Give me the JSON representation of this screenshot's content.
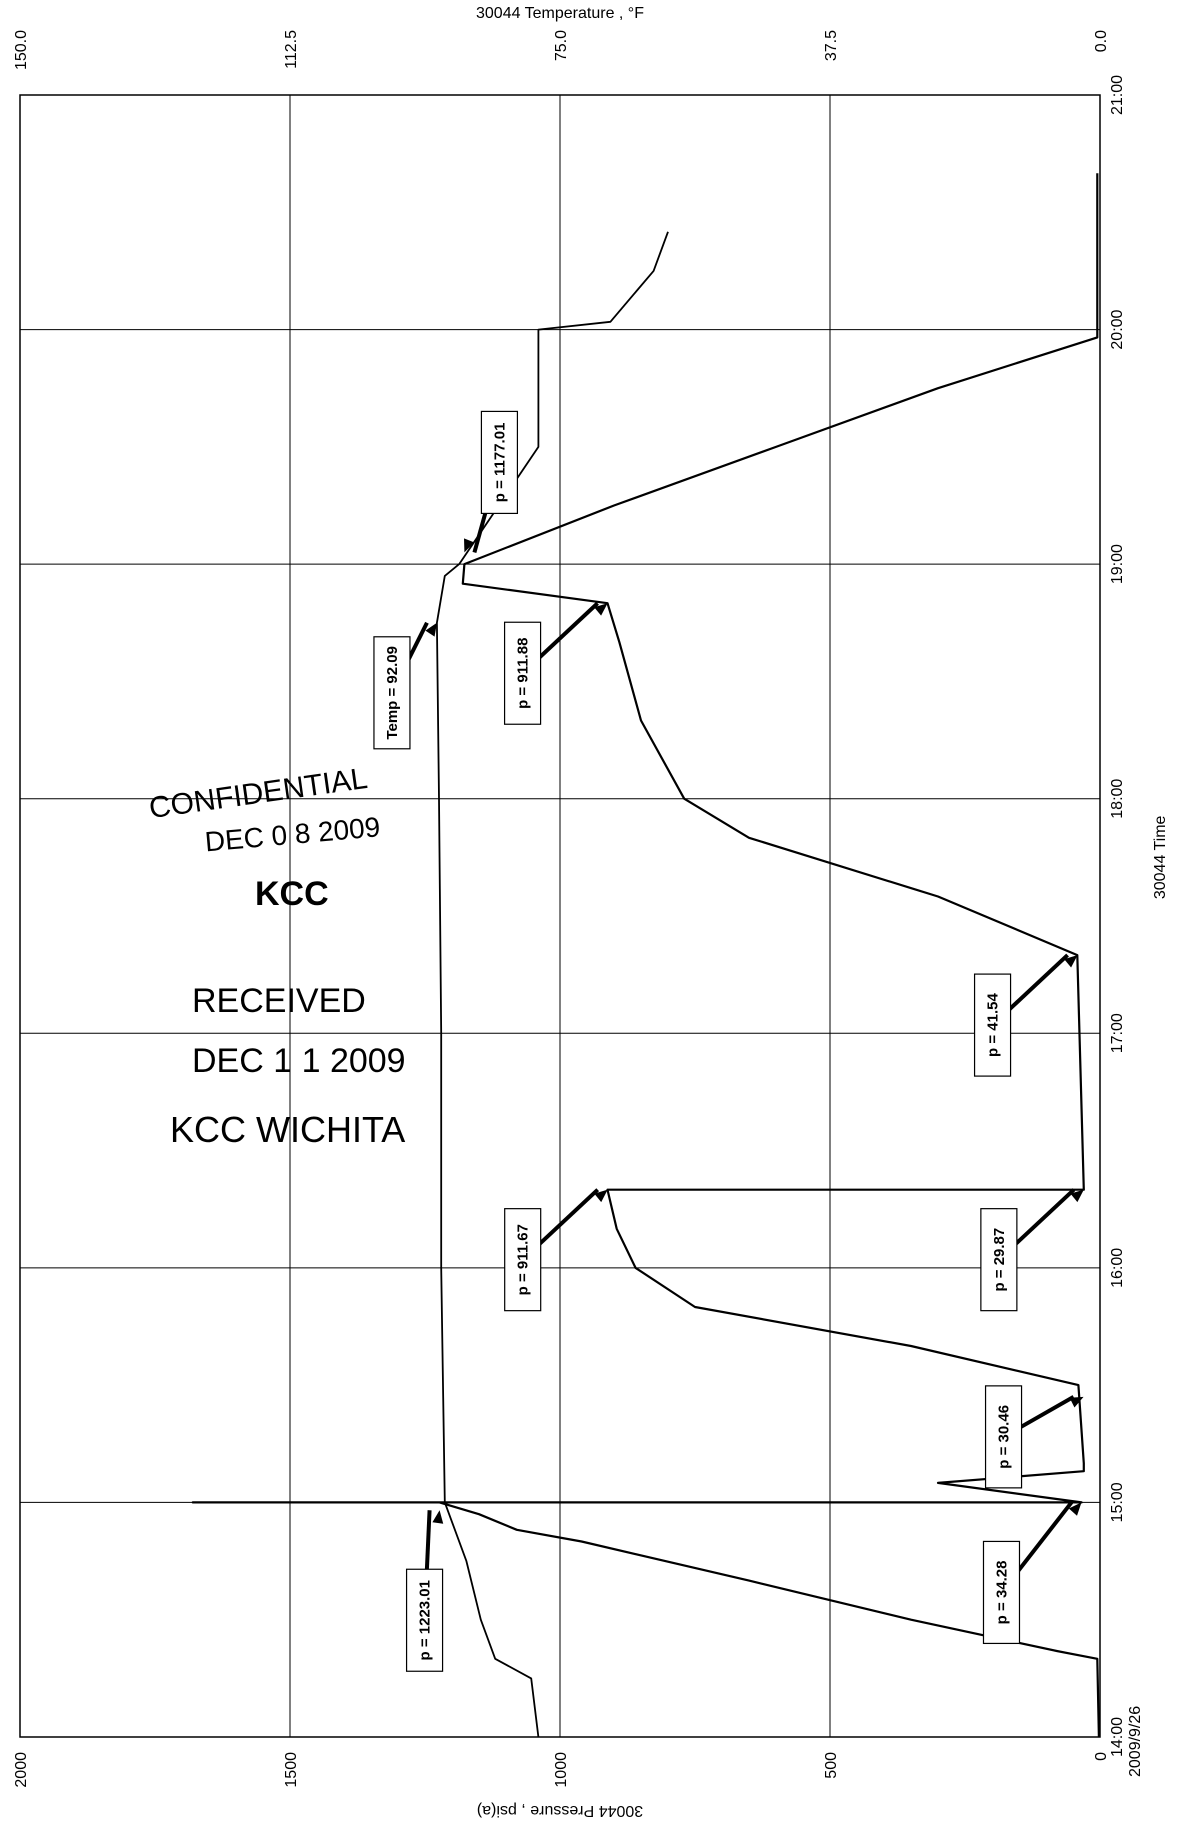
{
  "chart_data": {
    "type": "line",
    "orientation": "rotated-90",
    "x_axis": {
      "label": "30044 Time",
      "ticks": [
        "14:00",
        "15:00",
        "16:00",
        "17:00",
        "18:00",
        "19:00",
        "20:00",
        "21:00"
      ],
      "date_label": "2009/9/26",
      "range": [
        "14:00",
        "21:00"
      ]
    },
    "y_axis_left": {
      "label": "30044 Pressure , psi(a)",
      "ticks": [
        "0",
        "500",
        "1000",
        "1500",
        "2000"
      ],
      "range": [
        0,
        2000
      ]
    },
    "y_axis_right": {
      "label": "30044 Temperature , °F",
      "ticks": [
        "0.0",
        "37.5",
        "75.0",
        "112.5",
        "150.0"
      ],
      "range": [
        0,
        150
      ]
    },
    "grid": true,
    "series": [
      {
        "name": "",
        "unit": "psi(a)",
        "points": [
          [
            "14:00",
            2
          ],
          [
            "14:20",
            5
          ],
          [
            "14:22",
            80
          ],
          [
            "14:30",
            350
          ],
          [
            "14:40",
            650
          ],
          [
            "14:50",
            960
          ],
          [
            "14:53",
            1080
          ],
          [
            "14:57",
            1150
          ],
          [
            "15:00",
            1223
          ],
          [
            "15:00",
            1680
          ],
          [
            "15:00",
            34
          ],
          [
            "15:05",
            300
          ],
          [
            "15:08",
            30
          ],
          [
            "15:10",
            30
          ],
          [
            "15:30",
            40
          ],
          [
            "15:40",
            350
          ],
          [
            "15:50",
            750
          ],
          [
            "16:00",
            860
          ],
          [
            "16:10",
            895
          ],
          [
            "16:20",
            912
          ],
          [
            "16:20",
            30
          ],
          [
            "17:20",
            42
          ],
          [
            "17:35",
            300
          ],
          [
            "17:50",
            650
          ],
          [
            "18:00",
            770
          ],
          [
            "18:20",
            850
          ],
          [
            "18:40",
            890
          ],
          [
            "18:50",
            912
          ],
          [
            "18:55",
            1180
          ],
          [
            "19:00",
            1177
          ],
          [
            "19:15",
            900
          ],
          [
            "19:30",
            600
          ],
          [
            "19:45",
            300
          ],
          [
            "19:58",
            5
          ],
          [
            "20:40",
            5
          ]
        ]
      },
      {
        "name": "",
        "unit": "°F",
        "points": [
          [
            "14:00",
            78
          ],
          [
            "14:15",
            79
          ],
          [
            "14:20",
            84
          ],
          [
            "14:30",
            86
          ],
          [
            "14:45",
            88
          ],
          [
            "15:00",
            91
          ],
          [
            "16:00",
            91.5
          ],
          [
            "17:00",
            91.5
          ],
          [
            "18:00",
            91.8
          ],
          [
            "18:45",
            92.1
          ],
          [
            "18:57",
            91
          ],
          [
            "19:00",
            89
          ],
          [
            "19:30",
            78
          ],
          [
            "19:50",
            78
          ],
          [
            "20:00",
            78
          ],
          [
            "20:02",
            68
          ],
          [
            "20:15",
            62
          ],
          [
            "20:25",
            60
          ]
        ]
      }
    ],
    "annotations": [
      {
        "text": "p = 1223.01",
        "time": "14:58",
        "value": 1223.01
      },
      {
        "text": "p = 34.28",
        "time": "15:00",
        "value": 34.28
      },
      {
        "text": "p = 30.46",
        "time": "15:27",
        "value": 30.46
      },
      {
        "text": "p = 911.67",
        "time": "16:20",
        "value": 911.67
      },
      {
        "text": "p = 29.87",
        "time": "16:20",
        "value": 29.87
      },
      {
        "text": "p = 41.54",
        "time": "17:20",
        "value": 41.54
      },
      {
        "text": "p = 911.88",
        "time": "18:50",
        "value": 911.88
      },
      {
        "text": "Temp = 92.09",
        "time": "18:45",
        "value": 92.09
      },
      {
        "text": "p = 1177.01",
        "time": "19:03",
        "value": 1177.01
      }
    ]
  },
  "stamps": {
    "line1": "CONFIDENTIAL",
    "line2": "DEC 0 8 2009",
    "line3": "KCC",
    "line4": "RECEIVED",
    "line5": "DEC 1 1 2009",
    "line6": "KCC WICHITA"
  }
}
